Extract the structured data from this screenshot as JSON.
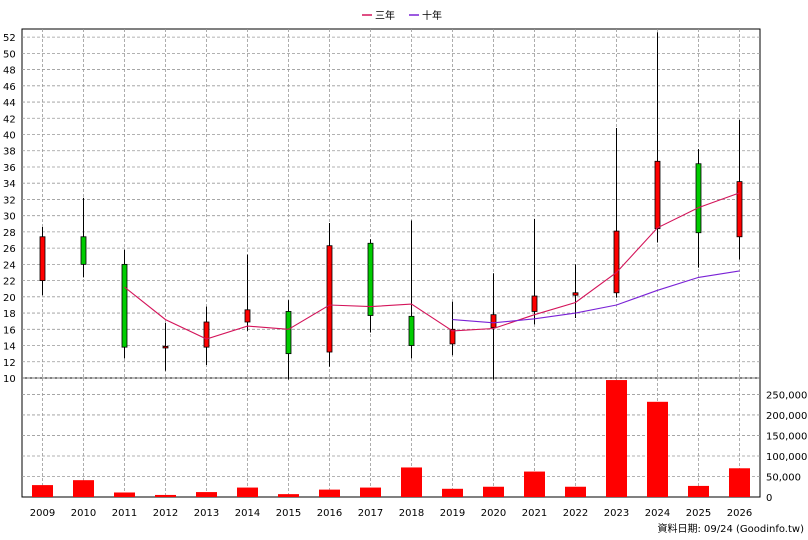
{
  "legend": {
    "three_year_label": "三年",
    "ten_year_label": "十年"
  },
  "source_note": "資料日期: 09/24  (Goodinfo.tw)",
  "colors": {
    "up": "#ff0000",
    "down": "#00cc00",
    "three_year": "#d4145a",
    "ten_year": "#7a22d6",
    "volume": "#ff0000"
  },
  "chart_data": [
    {
      "type": "candlestick",
      "title": "",
      "x": [
        "2009",
        "2010",
        "2011",
        "2012",
        "2013",
        "2014",
        "2015",
        "2016",
        "2017",
        "2018",
        "2019",
        "2020",
        "2021",
        "2022",
        "2023",
        "2024",
        "2025",
        "2026"
      ],
      "ylim": [
        10,
        53
      ],
      "y_ticks": [
        10,
        12,
        14,
        16,
        18,
        20,
        22,
        24,
        26,
        28,
        30,
        32,
        34,
        36,
        38,
        40,
        42,
        44,
        46,
        48,
        50,
        52
      ],
      "grid": true,
      "legend_position": "top-center",
      "ohlc": [
        {
          "open": 22.0,
          "high": 28.6,
          "low": 20.2,
          "close": 27.4,
          "dir": "up"
        },
        {
          "open": 27.4,
          "high": 32.2,
          "low": 22.4,
          "close": 24.0,
          "dir": "down"
        },
        {
          "open": 24.0,
          "high": 25.8,
          "low": 12.4,
          "close": 13.8,
          "dir": "down"
        },
        {
          "open": 13.7,
          "high": 16.8,
          "low": 10.9,
          "close": 13.9,
          "dir": "up"
        },
        {
          "open": 13.8,
          "high": 18.8,
          "low": 11.6,
          "close": 16.9,
          "dir": "up"
        },
        {
          "open": 16.9,
          "high": 25.2,
          "low": 15.8,
          "close": 18.4,
          "dir": "up"
        },
        {
          "open": 18.2,
          "high": 19.6,
          "low": 9.8,
          "close": 13.0,
          "dir": "down"
        },
        {
          "open": 13.2,
          "high": 29.1,
          "low": 11.4,
          "close": 26.3,
          "dir": "up"
        },
        {
          "open": 26.6,
          "high": 27.1,
          "low": 15.6,
          "close": 17.7,
          "dir": "down"
        },
        {
          "open": 17.6,
          "high": 29.4,
          "low": 12.4,
          "close": 14.0,
          "dir": "down"
        },
        {
          "open": 14.2,
          "high": 19.4,
          "low": 12.8,
          "close": 16.0,
          "dir": "up"
        },
        {
          "open": 16.2,
          "high": 22.9,
          "low": 9.8,
          "close": 17.8,
          "dir": "up"
        },
        {
          "open": 18.2,
          "high": 29.6,
          "low": 16.6,
          "close": 20.1,
          "dir": "up"
        },
        {
          "open": 20.2,
          "high": 24.0,
          "low": 17.4,
          "close": 20.5,
          "dir": "up"
        },
        {
          "open": 20.5,
          "high": 40.8,
          "low": 19.9,
          "close": 28.1,
          "dir": "up"
        },
        {
          "open": 28.4,
          "high": 52.6,
          "low": 26.7,
          "close": 36.7,
          "dir": "up"
        },
        {
          "open": 36.4,
          "high": 38.2,
          "low": 23.6,
          "close": 27.9,
          "dir": "down"
        },
        {
          "open": 27.4,
          "high": 41.8,
          "low": 24.6,
          "close": 34.2,
          "dir": "up"
        }
      ],
      "series": [
        {
          "name": "三年",
          "values": [
            null,
            null,
            21.2,
            17.2,
            14.8,
            16.4,
            16.0,
            19.0,
            18.8,
            19.1,
            15.8,
            16.1,
            17.8,
            19.3,
            23.0,
            28.5,
            31.0,
            32.8
          ]
        },
        {
          "name": "十年",
          "values": [
            null,
            null,
            null,
            null,
            null,
            null,
            null,
            null,
            null,
            null,
            17.2,
            16.8,
            17.3,
            18.0,
            19.0,
            20.8,
            22.4,
            23.2
          ]
        }
      ]
    },
    {
      "type": "bar",
      "title": "",
      "categories": [
        "2009",
        "2010",
        "2011",
        "2012",
        "2013",
        "2014",
        "2015",
        "2016",
        "2017",
        "2018",
        "2019",
        "2020",
        "2021",
        "2022",
        "2023",
        "2024",
        "2025",
        "2026"
      ],
      "values": [
        29000,
        41000,
        11000,
        5000,
        12000,
        23000,
        7000,
        18000,
        23000,
        72000,
        20000,
        25000,
        62000,
        25000,
        285000,
        232000,
        27000,
        70000
      ],
      "ylim": [
        0,
        290000
      ],
      "y_ticks": [
        "0",
        "50,000",
        "100,000",
        "150,000",
        "200,000",
        "250,000"
      ],
      "grid": true
    }
  ]
}
